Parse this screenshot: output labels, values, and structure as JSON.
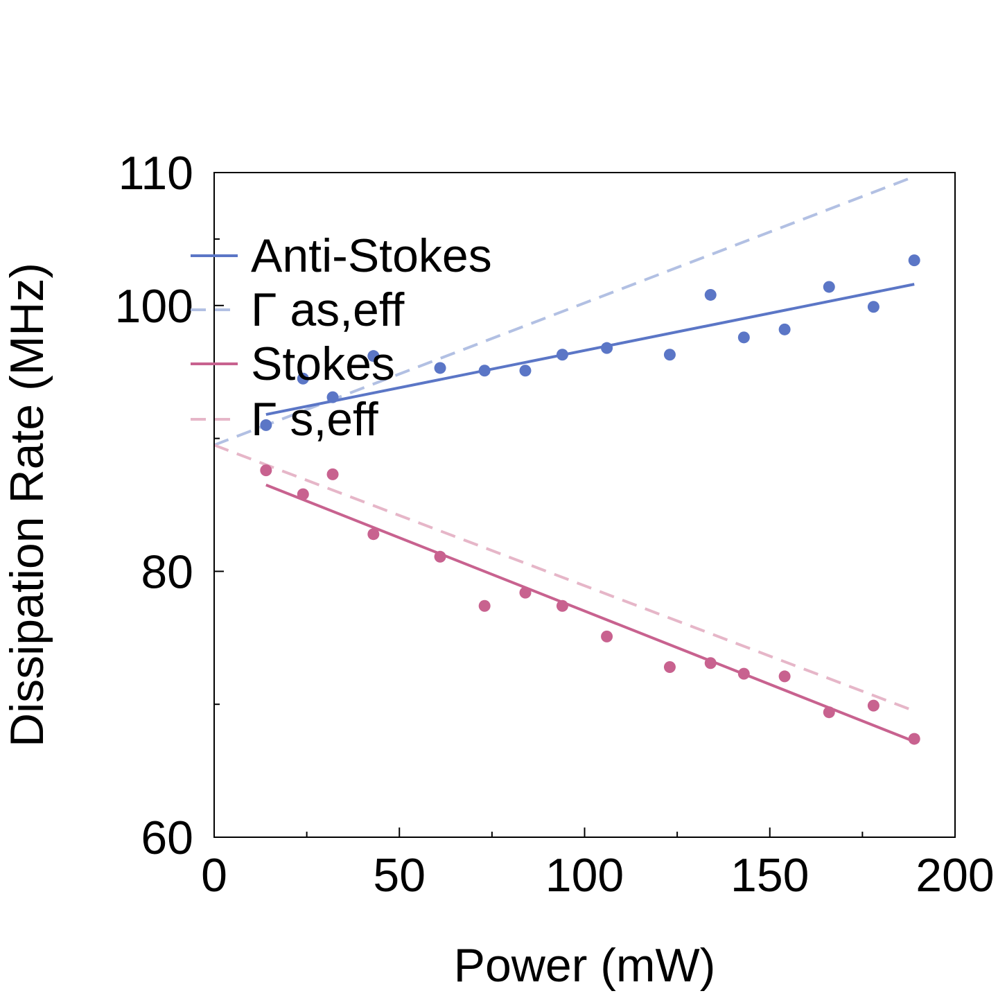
{
  "chart_data": {
    "type": "scatter",
    "xlabel": "Power (mW)",
    "ylabel": "Dissipation Rate (MHz)",
    "xlim": [
      0,
      200
    ],
    "ylim": [
      60,
      110
    ],
    "x_ticks": [
      {
        "value": 0,
        "label": "0"
      },
      {
        "value": 50,
        "label": "50"
      },
      {
        "value": 100,
        "label": "100"
      },
      {
        "value": 150,
        "label": "150"
      },
      {
        "value": 200,
        "label": "200"
      }
    ],
    "x_minor_ticks": [
      25,
      75,
      125,
      175
    ],
    "y_ticks": [
      {
        "value": 60,
        "label": "60"
      },
      {
        "value": 80,
        "label": "80"
      },
      {
        "value": 100,
        "label": "100"
      },
      {
        "value": 110,
        "label": "110"
      }
    ],
    "y_minor_ticks": [
      70,
      90,
      105
    ],
    "grid": false,
    "legend_position": "top-left",
    "colors": {
      "anti_stokes": "#5b76c6",
      "anti_stokes_eff": "#b2c0e3",
      "stokes": "#c8628f",
      "stokes_eff": "#e6b6c8",
      "axes": "#000000"
    },
    "series": [
      {
        "name": "Anti-Stokes",
        "kind": "points",
        "color": "#5b76c6",
        "x": [
          14,
          24,
          32,
          43,
          61,
          73,
          84,
          94,
          106,
          123,
          134,
          143,
          154,
          166,
          178,
          189
        ],
        "y": [
          91.0,
          94.5,
          93.1,
          96.2,
          95.3,
          95.1,
          95.1,
          96.3,
          96.8,
          96.3,
          100.8,
          97.6,
          98.2,
          101.4,
          99.9,
          103.4
        ]
      },
      {
        "name": "Anti-Stokes",
        "kind": "line",
        "dash": false,
        "color": "#5b76c6",
        "x": [
          14,
          189
        ],
        "y": [
          91.8,
          101.6
        ]
      },
      {
        "name": "Γ as,eff",
        "kind": "line",
        "dash": true,
        "color": "#b2c0e3",
        "x": [
          0,
          189
        ],
        "y": [
          89.5,
          109.7
        ]
      },
      {
        "name": "Stokes",
        "kind": "points",
        "color": "#c8628f",
        "x": [
          14,
          24,
          32,
          43,
          61,
          73,
          84,
          94,
          106,
          123,
          134,
          143,
          154,
          166,
          178,
          189
        ],
        "y": [
          87.6,
          85.8,
          87.3,
          82.8,
          81.1,
          77.4,
          78.4,
          77.4,
          75.1,
          72.8,
          73.1,
          72.3,
          72.1,
          69.4,
          69.9,
          67.4
        ]
      },
      {
        "name": "Stokes",
        "kind": "line",
        "dash": false,
        "color": "#c8628f",
        "x": [
          14,
          189
        ],
        "y": [
          86.5,
          67.2
        ]
      },
      {
        "name": "Γ s,eff",
        "kind": "line",
        "dash": true,
        "color": "#e6b6c8",
        "x": [
          0,
          189
        ],
        "y": [
          89.5,
          69.5
        ]
      }
    ],
    "legend": [
      {
        "label": "Anti-Stokes",
        "color": "#5b76c6",
        "dash": false
      },
      {
        "label": "Γ as,eff",
        "color": "#b2c0e3",
        "dash": true
      },
      {
        "label": "Stokes",
        "color": "#c8628f",
        "dash": false
      },
      {
        "label": "Γ s,eff",
        "color": "#e6b6c8",
        "dash": true
      }
    ]
  }
}
